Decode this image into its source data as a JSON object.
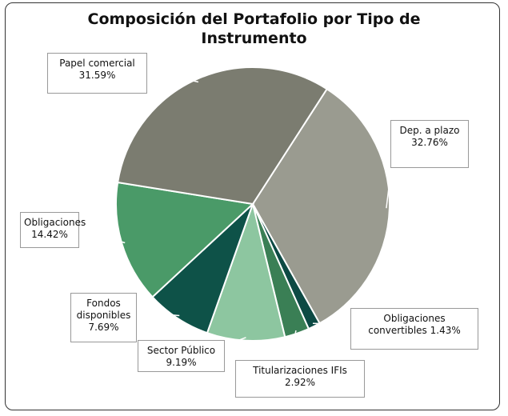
{
  "chart_data": {
    "type": "pie",
    "title": "Composición del Portafolio por Tipo de Instrumento",
    "categories": [
      "Dep. a plazo",
      "Obligaciones convertibles",
      "Titularizaciones IFIs",
      "Sector Público",
      "Fondos disponibles",
      "Obligaciones",
      "Papel comercial"
    ],
    "values": [
      32.76,
      1.43,
      2.92,
      9.19,
      7.69,
      14.42,
      31.59
    ],
    "value_labels": [
      "32.76%",
      "1.43%",
      "2.92%",
      "9.19%",
      "7.69%",
      "14.42%",
      "31.59%"
    ],
    "colors": [
      "#9a9b90",
      "#0d4a44",
      "#3a7f55",
      "#8dc6a0",
      "#0e5248",
      "#4a9a68",
      "#7b7c70"
    ]
  }
}
